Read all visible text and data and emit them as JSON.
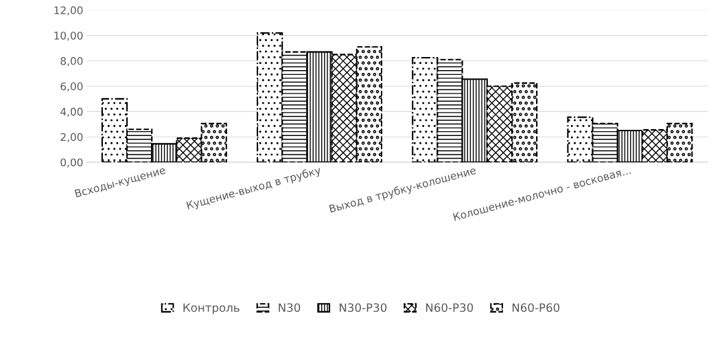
{
  "chart_data": {
    "type": "bar",
    "categories": [
      "Всходы-кущение",
      "Кущение-выход в трубку",
      "Выход в трубку-колошение",
      "Колошение-молочно - восковая..."
    ],
    "series": [
      {
        "name": "Контроль",
        "color": "#000000",
        "values": [
          5.0,
          10.2,
          8.25,
          3.55
        ]
      },
      {
        "name": "N30",
        "color": "#000000",
        "values": [
          2.6,
          8.7,
          8.1,
          3.05
        ]
      },
      {
        "name": "N30-P30",
        "color": "#000000",
        "values": [
          1.45,
          8.7,
          6.55,
          2.5
        ]
      },
      {
        "name": "N60-P30",
        "color": "#000000",
        "values": [
          1.9,
          8.5,
          6.0,
          2.55
        ]
      },
      {
        "name": "N60-P60",
        "color": "#000000",
        "values": [
          3.05,
          9.1,
          6.25,
          3.05
        ]
      }
    ],
    "ylim": [
      0,
      12
    ],
    "yticks": [
      {
        "value": 0,
        "label": "0,00"
      },
      {
        "value": 2,
        "label": "2,00"
      },
      {
        "value": 4,
        "label": "4,00"
      },
      {
        "value": 6,
        "label": "6,00"
      },
      {
        "value": 8,
        "label": "8,00"
      },
      {
        "value": 10,
        "label": "10,00"
      },
      {
        "value": 12,
        "label": "12,00"
      }
    ],
    "grid": "y",
    "legend": "bottom"
  }
}
